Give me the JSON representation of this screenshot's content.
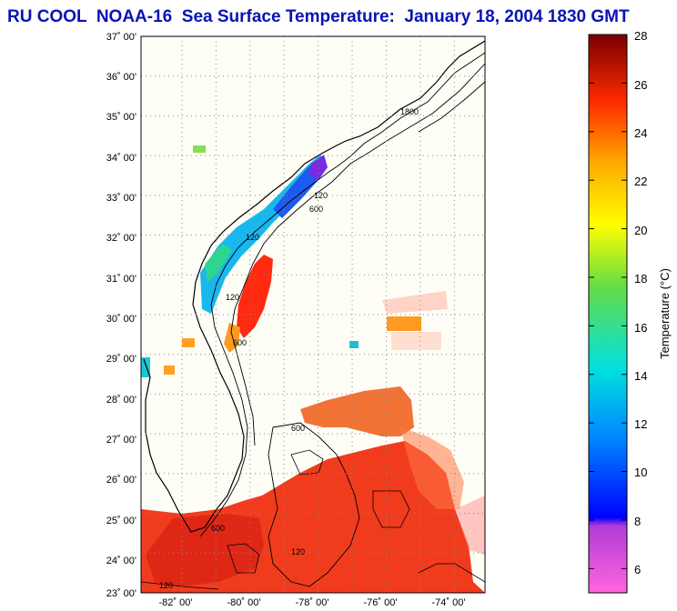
{
  "title": "RU COOL  NOAA-16  Sea Surface Temperature:  January 18, 2004 1830 GMT",
  "map": {
    "lat_labels": [
      "37˚ 00'",
      "36˚ 00'",
      "35˚ 00'",
      "34˚ 00'",
      "33˚ 00'",
      "32˚ 00'",
      "31˚ 00'",
      "30˚ 00'",
      "29˚ 00'",
      "28˚ 00'",
      "27˚ 00'",
      "26˚ 00'",
      "25˚ 00'",
      "24˚ 00'",
      "23˚ 00'"
    ],
    "lon_labels": [
      "-82˚ 00'",
      "-80˚ 00'",
      "-78˚ 00'",
      "-76˚ 00'",
      "-74˚ 00'"
    ],
    "lat_range": [
      23,
      37
    ],
    "lon_range": [
      -83.2,
      -73.1
    ],
    "isobath_labels": [
      "120",
      "600",
      "1800"
    ],
    "colors": {
      "land": "#fffef6",
      "coast": "#000000",
      "grid": "#888888"
    }
  },
  "colorbar": {
    "label": "Temperature (°C)",
    "range": [
      5,
      28
    ],
    "ticks": [
      "6",
      "8",
      "10",
      "12",
      "14",
      "16",
      "18",
      "20",
      "22",
      "24",
      "26",
      "28"
    ]
  }
}
